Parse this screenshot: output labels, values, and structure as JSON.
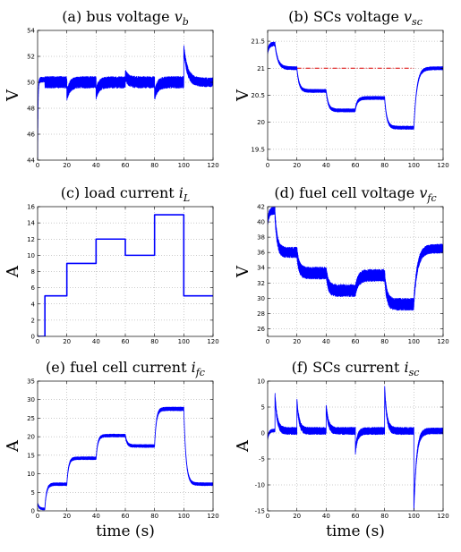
{
  "chart_data": [
    {
      "id": "a",
      "type": "line",
      "title_prefix": "(a) bus voltage ",
      "title_math": "v",
      "title_sub": "b",
      "ylabel": "V",
      "xlabel": "",
      "xlim": [
        0,
        120
      ],
      "ylim": [
        44,
        54
      ],
      "xticks": [
        0,
        20,
        40,
        60,
        80,
        100,
        120
      ],
      "yticks": [
        44,
        46,
        48,
        50,
        52,
        54
      ],
      "grid": true,
      "series": [
        {
          "color": "#0000ff",
          "segments": [
            {
              "x0": 0,
              "x1": 5,
              "baseline": 50.2,
              "noise": 0.2,
              "start": 44.0,
              "decay": 0.3
            },
            {
              "x0": 5,
              "x1": 20,
              "baseline": 50.0,
              "noise": 0.45
            },
            {
              "x0": 20,
              "x1": 40,
              "baseline": 50.0,
              "noise": 0.45,
              "start": 49.0,
              "decay": 2.0
            },
            {
              "x0": 40,
              "x1": 60,
              "baseline": 50.0,
              "noise": 0.45,
              "start": 49.1,
              "decay": 2.0
            },
            {
              "x0": 60,
              "x1": 80,
              "baseline": 50.0,
              "noise": 0.45,
              "start": 50.6,
              "decay": 2.0
            },
            {
              "x0": 80,
              "x1": 100,
              "baseline": 50.0,
              "noise": 0.45,
              "start": 49.0,
              "decay": 2.0
            },
            {
              "x0": 100,
              "x1": 120,
              "baseline": 50.0,
              "noise": 0.35,
              "start": 52.6,
              "decay": 2.5
            }
          ]
        }
      ]
    },
    {
      "id": "b",
      "type": "line",
      "title_prefix": "(b) SCs voltage ",
      "title_math": "v",
      "title_sub": "sc",
      "ylabel": "V",
      "xlabel": "",
      "xlim": [
        0,
        120
      ],
      "ylim": [
        19.3,
        21.7
      ],
      "xticks": [
        0,
        20,
        40,
        60,
        80,
        100,
        120
      ],
      "yticks": [
        19.5,
        20,
        20.5,
        21,
        21.5
      ],
      "grid": true,
      "reference_line": {
        "y": 21.0,
        "x0": 20,
        "x1": 100,
        "color": "#dd0000"
      },
      "series": [
        {
          "color": "#0000ff",
          "segments": [
            {
              "x0": 0,
              "x1": 5,
              "baseline": 21.45,
              "noise": 0.04,
              "start": 21.3,
              "decay": 1.0
            },
            {
              "x0": 5,
              "x1": 20,
              "baseline": 21.0,
              "noise": 0.03,
              "start": 21.45,
              "decay": 2.0
            },
            {
              "x0": 20,
              "x1": 40,
              "baseline": 20.58,
              "noise": 0.03,
              "start": 21.0,
              "decay": 1.5
            },
            {
              "x0": 40,
              "x1": 60,
              "baseline": 20.22,
              "noise": 0.03,
              "start": 20.58,
              "decay": 1.5
            },
            {
              "x0": 60,
              "x1": 80,
              "baseline": 20.45,
              "noise": 0.03,
              "start": 20.25,
              "decay": 1.5
            },
            {
              "x0": 80,
              "x1": 100,
              "baseline": 19.9,
              "noise": 0.03,
              "start": 20.45,
              "decay": 1.5
            },
            {
              "x0": 100,
              "x1": 120,
              "baseline": 21.0,
              "noise": 0.03,
              "start": 19.9,
              "decay": 2.0
            }
          ]
        }
      ]
    },
    {
      "id": "c",
      "type": "line",
      "title_prefix": "(c) load current ",
      "title_math": "i",
      "title_sub": "L",
      "ylabel": "A",
      "xlabel": "",
      "xlim": [
        0,
        120
      ],
      "ylim": [
        0,
        16
      ],
      "xticks": [
        0,
        20,
        40,
        60,
        80,
        100,
        120
      ],
      "yticks": [
        0,
        2,
        4,
        6,
        8,
        10,
        12,
        14,
        16
      ],
      "grid": true,
      "series": [
        {
          "color": "#0000ff",
          "steps": [
            [
              0,
              0
            ],
            [
              5,
              5
            ],
            [
              20,
              9
            ],
            [
              40,
              12
            ],
            [
              60,
              10
            ],
            [
              80,
              15
            ],
            [
              100,
              5
            ],
            [
              120,
              5
            ]
          ]
        }
      ]
    },
    {
      "id": "d",
      "type": "line",
      "title_prefix": "(d) fuel cell voltage ",
      "title_math": "v",
      "title_sub": "fc",
      "ylabel": "V",
      "xlabel": "",
      "xlim": [
        0,
        120
      ],
      "ylim": [
        25,
        42
      ],
      "xticks": [
        0,
        20,
        40,
        60,
        80,
        100,
        120
      ],
      "yticks": [
        26,
        28,
        30,
        32,
        34,
        36,
        38,
        40,
        42
      ],
      "grid": true,
      "series": [
        {
          "color": "#0000ff",
          "segments": [
            {
              "x0": 0,
              "x1": 5,
              "baseline": 41.5,
              "noise": 0.5,
              "start": 40.0,
              "decay": 1.0
            },
            {
              "x0": 5,
              "x1": 20,
              "baseline": 36.0,
              "noise": 0.7,
              "start": 41.0,
              "decay": 1.5
            },
            {
              "x0": 20,
              "x1": 40,
              "baseline": 33.3,
              "noise": 0.8,
              "start": 36.0,
              "decay": 1.5
            },
            {
              "x0": 40,
              "x1": 60,
              "baseline": 31.0,
              "noise": 0.8,
              "start": 33.5,
              "decay": 1.5
            },
            {
              "x0": 60,
              "x1": 80,
              "baseline": 33.0,
              "noise": 0.8,
              "start": 31.0,
              "decay": 2.0
            },
            {
              "x0": 80,
              "x1": 100,
              "baseline": 29.2,
              "noise": 0.8,
              "start": 33.0,
              "decay": 1.5
            },
            {
              "x0": 100,
              "x1": 120,
              "baseline": 36.5,
              "noise": 0.6,
              "start": 29.5,
              "decay": 2.5
            }
          ]
        }
      ]
    },
    {
      "id": "e",
      "type": "line",
      "title_prefix": "(e) fuel cell current ",
      "title_math": "i",
      "title_sub": "fc",
      "ylabel": "A",
      "xlabel": "time (s)",
      "xlim": [
        0,
        120
      ],
      "ylim": [
        0,
        35
      ],
      "xticks": [
        0,
        20,
        40,
        60,
        80,
        100,
        120
      ],
      "yticks": [
        0,
        5,
        10,
        15,
        20,
        25,
        30,
        35
      ],
      "grid": true,
      "series": [
        {
          "color": "#0000ff",
          "segments": [
            {
              "x0": 0,
              "x1": 5,
              "baseline": 0.5,
              "noise": 0.3,
              "start": 2.0,
              "decay": 1.0
            },
            {
              "x0": 5,
              "x1": 20,
              "baseline": 7.2,
              "noise": 0.4,
              "start": 1.0,
              "decay": 1.2
            },
            {
              "x0": 20,
              "x1": 40,
              "baseline": 14.2,
              "noise": 0.4,
              "start": 7.2,
              "decay": 1.2
            },
            {
              "x0": 40,
              "x1": 60,
              "baseline": 20.3,
              "noise": 0.4,
              "start": 14.2,
              "decay": 1.2
            },
            {
              "x0": 60,
              "x1": 80,
              "baseline": 17.5,
              "noise": 0.4,
              "start": 20.3,
              "decay": 1.2
            },
            {
              "x0": 80,
              "x1": 100,
              "baseline": 27.5,
              "noise": 0.5,
              "start": 17.5,
              "decay": 1.2
            },
            {
              "x0": 100,
              "x1": 120,
              "baseline": 7.2,
              "noise": 0.4,
              "start": 27.5,
              "decay": 1.5
            }
          ]
        }
      ]
    },
    {
      "id": "f",
      "type": "line",
      "title_prefix": "(f) SCs current ",
      "title_math": "i",
      "title_sub": "sc",
      "ylabel": "A",
      "xlabel": "time (s)",
      "xlim": [
        0,
        120
      ],
      "ylim": [
        -15,
        10
      ],
      "xticks": [
        0,
        20,
        40,
        60,
        80,
        100,
        120
      ],
      "yticks": [
        -15,
        -10,
        -5,
        0,
        5,
        10
      ],
      "grid": true,
      "series": [
        {
          "color": "#0000ff",
          "segments": [
            {
              "x0": 0,
              "x1": 5,
              "baseline": 0.5,
              "noise": 0.3,
              "start": -1.0,
              "decay": 1.0
            },
            {
              "x0": 5,
              "x1": 20,
              "baseline": 0.4,
              "noise": 0.7,
              "start": 7.3,
              "decay": 1.5
            },
            {
              "x0": 20,
              "x1": 40,
              "baseline": 0.4,
              "noise": 0.7,
              "start": 6.3,
              "decay": 1.5
            },
            {
              "x0": 40,
              "x1": 60,
              "baseline": 0.4,
              "noise": 0.7,
              "start": 5.2,
              "decay": 1.5
            },
            {
              "x0": 60,
              "x1": 80,
              "baseline": 0.4,
              "noise": 0.7,
              "start": -3.5,
              "decay": 1.5
            },
            {
              "x0": 80,
              "x1": 100,
              "baseline": 0.4,
              "noise": 0.7,
              "start": 8.7,
              "decay": 1.5
            },
            {
              "x0": 100,
              "x1": 120,
              "baseline": 0.4,
              "noise": 0.6,
              "start": -15.0,
              "decay": 1.8
            }
          ]
        }
      ]
    }
  ]
}
